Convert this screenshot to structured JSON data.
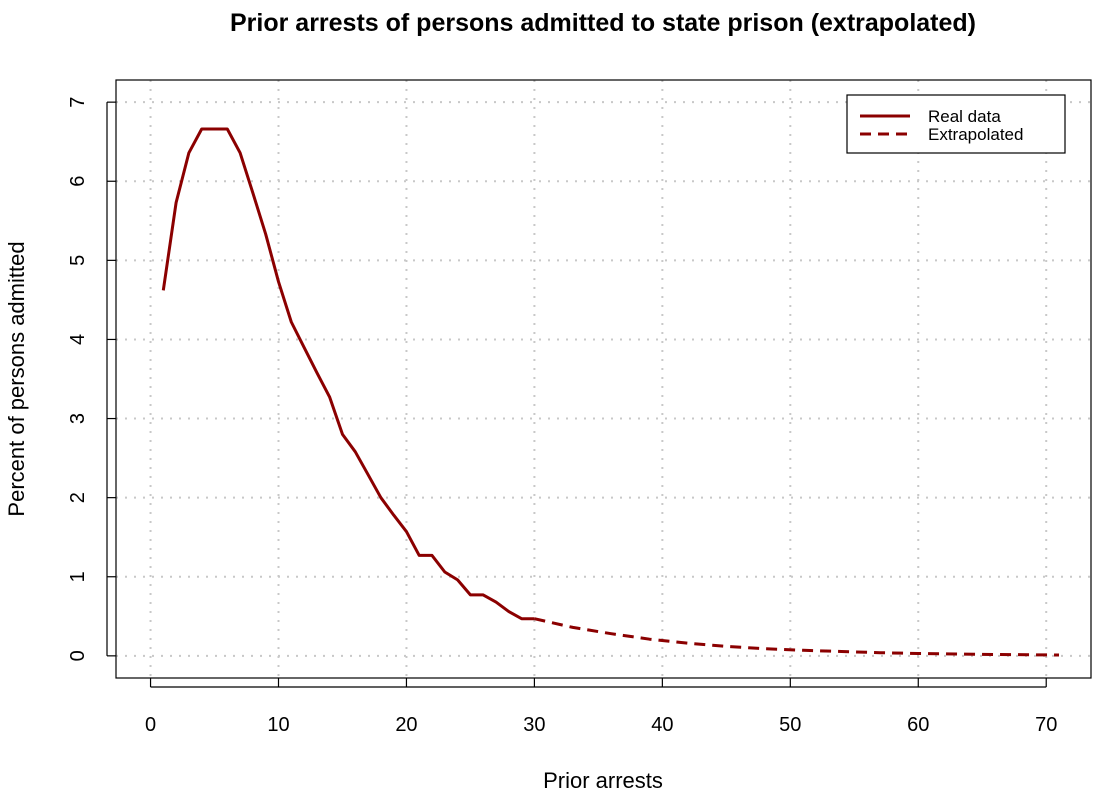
{
  "chart_data": {
    "type": "line",
    "title": "Prior arrests of persons admitted to state prison (extrapolated)",
    "xlabel": "Prior arrests",
    "ylabel": "Percent of persons admitted",
    "xlim": [
      -2.7,
      73.5
    ],
    "ylim": [
      -0.28,
      7.28
    ],
    "xticks": [
      0,
      10,
      20,
      30,
      40,
      50,
      60,
      70
    ],
    "yticks": [
      0,
      1,
      2,
      3,
      4,
      5,
      6,
      7
    ],
    "grid": true,
    "legend": {
      "position": "top-right",
      "entries": [
        {
          "label": "Real data",
          "style": "solid"
        },
        {
          "label": "Extrapolated",
          "style": "dashed"
        }
      ]
    },
    "color": "#8b0000",
    "series": [
      {
        "name": "Real data",
        "style": "solid",
        "x": [
          1,
          2,
          3,
          4,
          5,
          6,
          7,
          8,
          9,
          10,
          11,
          12,
          13,
          14,
          15,
          16,
          17,
          18,
          19,
          20,
          21,
          22,
          23,
          24,
          25,
          26,
          27,
          28,
          29,
          30
        ],
        "y": [
          4.62,
          5.73,
          6.36,
          6.66,
          6.66,
          6.66,
          6.36,
          5.85,
          5.33,
          4.73,
          4.22,
          3.9,
          3.58,
          3.27,
          2.8,
          2.58,
          2.29,
          2.0,
          1.78,
          1.57,
          1.27,
          1.27,
          1.06,
          0.96,
          0.77,
          0.77,
          0.68,
          0.56,
          0.47,
          0.47
        ]
      },
      {
        "name": "Extrapolated",
        "style": "dashed",
        "x": [
          30,
          33,
          36,
          39,
          42,
          45,
          48,
          51,
          54,
          57,
          60,
          63,
          66,
          69,
          71
        ],
        "y": [
          0.47,
          0.36,
          0.28,
          0.21,
          0.16,
          0.12,
          0.09,
          0.07,
          0.055,
          0.04,
          0.03,
          0.023,
          0.017,
          0.013,
          0.011
        ]
      }
    ]
  }
}
